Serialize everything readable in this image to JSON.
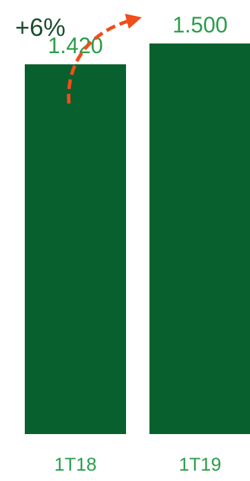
{
  "chart_data": {
    "type": "bar",
    "title": "",
    "xlabel": "",
    "ylabel": "",
    "categories": [
      "1T18",
      "1T19"
    ],
    "values": [
      1420,
      1500
    ],
    "value_labels": [
      "1.420",
      "1.500"
    ],
    "ylim": [
      0,
      1500
    ],
    "grid": false,
    "annotation": {
      "text": "+6%",
      "type": "dashed-curved-arrow",
      "from": "1T18",
      "to": "1T19"
    },
    "colors": {
      "bar": "#08602E",
      "value_label": "#2A9D4A",
      "category_label": "#2A9D4A",
      "annotation_text": "#1B4D2E",
      "arrow": "#F04E1A"
    }
  }
}
